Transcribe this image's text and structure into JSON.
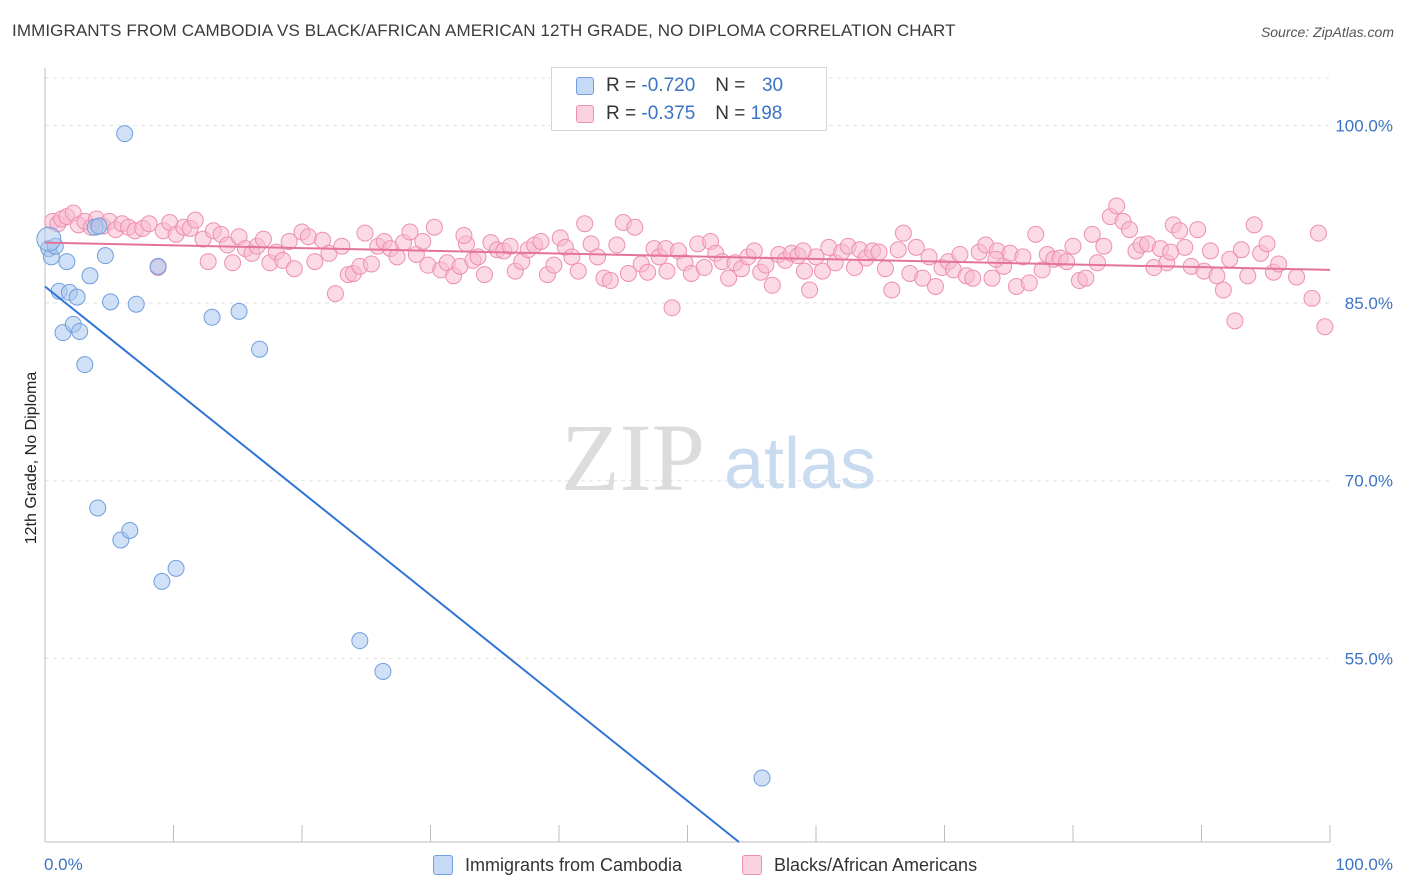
{
  "title": "IMMIGRANTS FROM CAMBODIA VS BLACK/AFRICAN AMERICAN 12TH GRADE, NO DIPLOMA CORRELATION CHART",
  "source": "Source: ZipAtlas.com",
  "watermark": {
    "zip": "ZIP",
    "atlas": "atlas"
  },
  "legend": {
    "rows": [
      {
        "r_label": "R =",
        "r_value": "-0.720",
        "n_label": "N =",
        "n_value": "30",
        "color": "#a9c6ee",
        "border": "#6f9fdc"
      },
      {
        "r_label": "R =",
        "r_value": "-0.375",
        "n_label": "N =",
        "n_value": "198",
        "color": "#f7bccf",
        "border": "#ee8fb0"
      }
    ]
  },
  "bottom_legend": [
    {
      "label": "Immigrants from Cambodia",
      "color": "#c6d9f5",
      "border": "#6f9fdc"
    },
    {
      "label": "Blacks/African Americans",
      "color": "#fbd3e0",
      "border": "#ee8fb0"
    }
  ],
  "chart_data": {
    "type": "scatter",
    "title": "IMMIGRANTS FROM CAMBODIA VS BLACK/AFRICAN AMERICAN 12TH GRADE, NO DIPLOMA CORRELATION CHART",
    "xlabel": "",
    "ylabel": "12th Grade, No Diploma",
    "xlim": [
      0,
      100
    ],
    "ylim": [
      39.5,
      104
    ],
    "x_tick_labels": [
      "0.0%",
      "100.0%"
    ],
    "y_ticks": [
      55,
      70,
      85,
      100
    ],
    "y_tick_labels": [
      "55.0%",
      "70.0%",
      "85.0%",
      "100.0%"
    ],
    "grid": true,
    "legend_position": "top-center",
    "series": [
      {
        "name": "Immigrants from Cambodia",
        "color": "#6f9fdc",
        "fill": "#a9c6ee",
        "points": [
          [
            0.3,
            89.6
          ],
          [
            0.5,
            88.9
          ],
          [
            0.8,
            89.8
          ],
          [
            1.1,
            86.0
          ],
          [
            1.4,
            82.5
          ],
          [
            1.7,
            88.5
          ],
          [
            1.9,
            85.9
          ],
          [
            2.2,
            83.2
          ],
          [
            2.5,
            85.5
          ],
          [
            2.7,
            82.6
          ],
          [
            3.1,
            79.8
          ],
          [
            3.5,
            87.3
          ],
          [
            3.9,
            91.4
          ],
          [
            4.2,
            91.5
          ],
          [
            4.7,
            89.0
          ],
          [
            5.1,
            85.1
          ],
          [
            6.2,
            99.3
          ],
          [
            7.1,
            84.9
          ],
          [
            8.8,
            88.1
          ],
          [
            13.0,
            83.8
          ],
          [
            15.1,
            84.3
          ],
          [
            16.7,
            81.1
          ],
          [
            4.1,
            67.7
          ],
          [
            5.9,
            65.0
          ],
          [
            6.6,
            65.8
          ],
          [
            9.1,
            61.5
          ],
          [
            10.2,
            62.6
          ],
          [
            24.5,
            56.5
          ],
          [
            26.3,
            53.9
          ],
          [
            55.8,
            44.9
          ]
        ],
        "trendline": {
          "x": [
            0,
            54
          ],
          "y": [
            86.4,
            39.5
          ]
        }
      },
      {
        "name": "Blacks/African Americans",
        "color": "#ee8fb0",
        "fill": "#f7bccf",
        "points": [
          [
            0.6,
            91.9
          ],
          [
            1.0,
            91.7
          ],
          [
            1.3,
            92.1
          ],
          [
            1.7,
            92.3
          ],
          [
            2.2,
            92.6
          ],
          [
            2.6,
            91.6
          ],
          [
            3.1,
            91.9
          ],
          [
            3.6,
            91.4
          ],
          [
            4.0,
            92.1
          ],
          [
            4.5,
            91.5
          ],
          [
            5.0,
            91.9
          ],
          [
            5.5,
            91.2
          ],
          [
            6.0,
            91.7
          ],
          [
            6.5,
            91.4
          ],
          [
            7.0,
            91.1
          ],
          [
            7.6,
            91.3
          ],
          [
            8.1,
            91.7
          ],
          [
            8.8,
            88.0
          ],
          [
            9.2,
            91.1
          ],
          [
            9.7,
            91.8
          ],
          [
            10.2,
            90.8
          ],
          [
            10.8,
            91.4
          ],
          [
            11.3,
            91.3
          ],
          [
            11.7,
            92.0
          ],
          [
            12.3,
            90.4
          ],
          [
            12.7,
            88.5
          ],
          [
            13.1,
            91.1
          ],
          [
            13.7,
            90.8
          ],
          [
            14.2,
            89.9
          ],
          [
            14.6,
            88.4
          ],
          [
            15.1,
            90.6
          ],
          [
            15.6,
            89.6
          ],
          [
            16.1,
            89.2
          ],
          [
            16.5,
            89.8
          ],
          [
            17.0,
            90.4
          ],
          [
            17.5,
            88.4
          ],
          [
            18.0,
            89.3
          ],
          [
            18.5,
            88.6
          ],
          [
            19.0,
            90.2
          ],
          [
            19.4,
            87.9
          ],
          [
            20.0,
            91.0
          ],
          [
            20.5,
            90.6
          ],
          [
            21.0,
            88.5
          ],
          [
            21.6,
            90.3
          ],
          [
            22.1,
            89.2
          ],
          [
            22.6,
            85.8
          ],
          [
            23.1,
            89.8
          ],
          [
            23.6,
            87.4
          ],
          [
            24.0,
            87.5
          ],
          [
            24.5,
            88.1
          ],
          [
            24.9,
            90.9
          ],
          [
            25.4,
            88.3
          ],
          [
            25.9,
            89.8
          ],
          [
            26.4,
            90.2
          ],
          [
            26.9,
            89.6
          ],
          [
            27.4,
            88.9
          ],
          [
            27.9,
            90.1
          ],
          [
            28.4,
            91.0
          ],
          [
            28.9,
            89.1
          ],
          [
            29.4,
            90.2
          ],
          [
            29.8,
            88.2
          ],
          [
            30.3,
            91.4
          ],
          [
            30.8,
            87.8
          ],
          [
            31.3,
            88.4
          ],
          [
            31.8,
            87.3
          ],
          [
            32.3,
            88.1
          ],
          [
            32.8,
            90.0
          ],
          [
            33.3,
            88.6
          ],
          [
            33.7,
            88.9
          ],
          [
            34.2,
            87.4
          ],
          [
            34.7,
            90.1
          ],
          [
            35.2,
            89.5
          ],
          [
            35.7,
            89.4
          ],
          [
            36.2,
            89.8
          ],
          [
            36.6,
            87.7
          ],
          [
            37.1,
            88.5
          ],
          [
            37.6,
            89.5
          ],
          [
            38.1,
            89.9
          ],
          [
            38.6,
            90.2
          ],
          [
            39.1,
            87.4
          ],
          [
            39.6,
            88.2
          ],
          [
            40.1,
            90.5
          ],
          [
            40.5,
            89.7
          ],
          [
            41.0,
            88.9
          ],
          [
            41.5,
            87.7
          ],
          [
            42.0,
            91.7
          ],
          [
            42.5,
            90.0
          ],
          [
            43.0,
            88.9
          ],
          [
            43.5,
            87.1
          ],
          [
            44.0,
            86.9
          ],
          [
            44.5,
            89.9
          ],
          [
            45.0,
            91.8
          ],
          [
            45.4,
            87.5
          ],
          [
            45.9,
            91.4
          ],
          [
            46.4,
            88.3
          ],
          [
            46.9,
            87.6
          ],
          [
            47.4,
            89.6
          ],
          [
            47.8,
            88.9
          ],
          [
            48.3,
            89.6
          ],
          [
            48.8,
            84.6
          ],
          [
            49.3,
            89.4
          ],
          [
            49.8,
            88.4
          ],
          [
            50.3,
            87.5
          ],
          [
            50.8,
            90.0
          ],
          [
            51.3,
            88.0
          ],
          [
            51.8,
            90.2
          ],
          [
            52.2,
            89.2
          ],
          [
            52.7,
            88.5
          ],
          [
            53.2,
            87.1
          ],
          [
            53.7,
            88.4
          ],
          [
            54.2,
            87.9
          ],
          [
            54.7,
            88.9
          ],
          [
            55.2,
            89.4
          ],
          [
            55.7,
            87.6
          ],
          [
            56.1,
            88.2
          ],
          [
            56.6,
            86.5
          ],
          [
            57.1,
            89.1
          ],
          [
            57.6,
            88.6
          ],
          [
            58.1,
            89.2
          ],
          [
            58.6,
            89.0
          ],
          [
            59.1,
            87.7
          ],
          [
            59.5,
            86.1
          ],
          [
            60.0,
            88.9
          ],
          [
            60.5,
            87.7
          ],
          [
            61.0,
            89.7
          ],
          [
            61.5,
            88.4
          ],
          [
            62.0,
            89.3
          ],
          [
            62.5,
            89.8
          ],
          [
            63.0,
            88.0
          ],
          [
            63.4,
            89.5
          ],
          [
            63.9,
            88.8
          ],
          [
            64.4,
            89.4
          ],
          [
            64.9,
            89.3
          ],
          [
            65.4,
            87.9
          ],
          [
            65.9,
            86.1
          ],
          [
            66.4,
            89.5
          ],
          [
            66.8,
            90.9
          ],
          [
            67.3,
            87.5
          ],
          [
            67.8,
            89.7
          ],
          [
            68.3,
            87.1
          ],
          [
            68.8,
            88.9
          ],
          [
            69.3,
            86.4
          ],
          [
            69.8,
            88.0
          ],
          [
            70.3,
            88.5
          ],
          [
            70.7,
            87.8
          ],
          [
            71.2,
            89.1
          ],
          [
            71.7,
            87.3
          ],
          [
            72.2,
            87.1
          ],
          [
            72.7,
            89.3
          ],
          [
            73.2,
            89.9
          ],
          [
            73.7,
            87.1
          ],
          [
            74.1,
            89.4
          ],
          [
            74.6,
            88.1
          ],
          [
            75.1,
            89.2
          ],
          [
            75.6,
            86.4
          ],
          [
            76.1,
            88.9
          ],
          [
            76.6,
            86.7
          ],
          [
            77.1,
            90.8
          ],
          [
            77.6,
            87.8
          ],
          [
            78.0,
            89.1
          ],
          [
            78.5,
            88.7
          ],
          [
            79.0,
            88.8
          ],
          [
            79.5,
            88.5
          ],
          [
            80.0,
            89.8
          ],
          [
            80.5,
            86.9
          ],
          [
            81.0,
            87.1
          ],
          [
            81.5,
            90.8
          ],
          [
            81.9,
            88.4
          ],
          [
            82.4,
            89.8
          ],
          [
            82.9,
            92.3
          ],
          [
            83.4,
            93.2
          ],
          [
            83.9,
            91.9
          ],
          [
            84.4,
            91.2
          ],
          [
            84.9,
            89.4
          ],
          [
            85.3,
            89.9
          ],
          [
            85.8,
            90.0
          ],
          [
            86.3,
            88.0
          ],
          [
            86.8,
            89.6
          ],
          [
            87.3,
            88.4
          ],
          [
            87.8,
            91.6
          ],
          [
            88.3,
            91.1
          ],
          [
            88.7,
            89.7
          ],
          [
            89.2,
            88.1
          ],
          [
            89.7,
            91.2
          ],
          [
            90.2,
            87.7
          ],
          [
            90.7,
            89.4
          ],
          [
            91.2,
            87.3
          ],
          [
            91.7,
            86.1
          ],
          [
            92.2,
            88.7
          ],
          [
            92.6,
            83.5
          ],
          [
            93.1,
            89.5
          ],
          [
            93.6,
            87.3
          ],
          [
            94.1,
            91.6
          ],
          [
            94.6,
            89.2
          ],
          [
            95.1,
            90.0
          ],
          [
            95.6,
            87.6
          ],
          [
            96.0,
            88.3
          ],
          [
            97.4,
            87.2
          ],
          [
            98.6,
            85.4
          ],
          [
            99.1,
            90.9
          ],
          [
            99.6,
            83.0
          ],
          [
            87.6,
            89.3
          ],
          [
            48.4,
            87.7
          ],
          [
            32.6,
            90.7
          ],
          [
            74.0,
            88.7
          ],
          [
            59.0,
            89.4
          ]
        ],
        "trendline": {
          "x": [
            0,
            100
          ],
          "y": [
            90.1,
            87.8
          ]
        }
      }
    ]
  }
}
